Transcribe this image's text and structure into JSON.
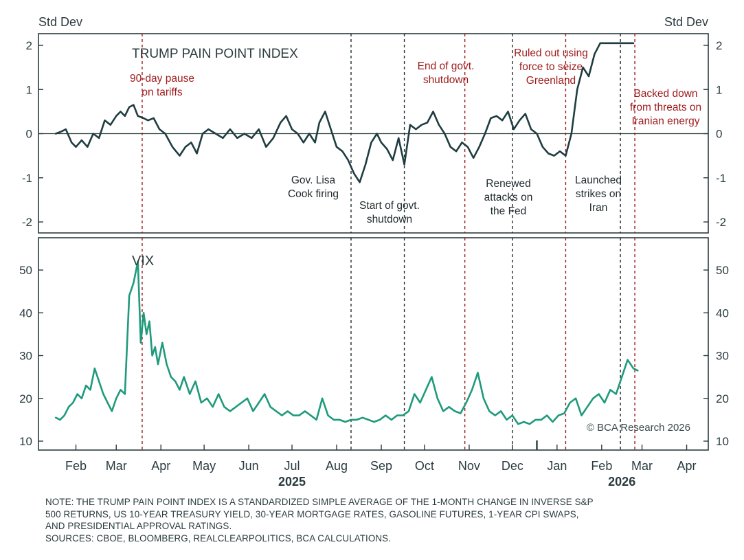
{
  "chart_data": [
    {
      "type": "line",
      "title": "TRUMP PAIN POINT INDEX",
      "y_unit_left": "Std Dev",
      "y_unit_right": "Std Dev",
      "ylim": [
        -2.4,
        2.2
      ],
      "yticks": [
        2,
        1,
        0,
        -1,
        -2
      ],
      "ytick_labels": [
        "2",
        "1",
        "0",
        "-1",
        "-2"
      ],
      "zero_line": true,
      "grid": false,
      "series": [
        {
          "color": "#1f3d40",
          "x": [
            "2025-02-01",
            "2025-02-05",
            "2025-02-08",
            "2025-02-12",
            "2025-02-15",
            "2025-02-19",
            "2025-02-23",
            "2025-02-27",
            "2025-03-03",
            "2025-03-07",
            "2025-03-11",
            "2025-03-15",
            "2025-03-18",
            "2025-03-21",
            "2025-03-24",
            "2025-03-27",
            "2025-03-30",
            "2025-04-03",
            "2025-04-06",
            "2025-04-10",
            "2025-04-14",
            "2025-04-18",
            "2025-04-23",
            "2025-04-28",
            "2025-05-02",
            "2025-05-06",
            "2025-05-10",
            "2025-05-14",
            "2025-05-18",
            "2025-05-23",
            "2025-05-28",
            "2025-06-02",
            "2025-06-07",
            "2025-06-12",
            "2025-06-17",
            "2025-06-22",
            "2025-06-27",
            "2025-07-02",
            "2025-07-07",
            "2025-07-11",
            "2025-07-15",
            "2025-07-19",
            "2025-07-23",
            "2025-07-27",
            "2025-07-31",
            "2025-08-03",
            "2025-08-07",
            "2025-08-11",
            "2025-08-15",
            "2025-08-19",
            "2025-08-23",
            "2025-08-27",
            "2025-08-31",
            "2025-09-04",
            "2025-09-08",
            "2025-09-12",
            "2025-09-15",
            "2025-09-19",
            "2025-09-23",
            "2025-09-27",
            "2025-10-01",
            "2025-10-05",
            "2025-10-09",
            "2025-10-13",
            "2025-10-17",
            "2025-10-21",
            "2025-10-25",
            "2025-10-29",
            "2025-11-02",
            "2025-11-06",
            "2025-11-10",
            "2025-11-14",
            "2025-11-18",
            "2025-11-22",
            "2025-11-26",
            "2025-11-30",
            "2025-12-04",
            "2025-12-08",
            "2025-12-12",
            "2025-12-16",
            "2025-12-20",
            "2025-12-24",
            "2025-12-28",
            "2026-01-01",
            "2026-01-05",
            "2026-01-09",
            "2026-01-13",
            "2026-01-17",
            "2026-01-21",
            "2026-01-25",
            "2026-01-29",
            "2026-02-02",
            "2026-02-06",
            "2026-02-10",
            "2026-02-14",
            "2026-02-18",
            "2026-02-22",
            "2026-02-25",
            "2026-02-28",
            "2026-03-03",
            "2026-03-06",
            "2026-03-09"
          ],
          "values": [
            0,
            0.05,
            0.1,
            -0.2,
            -0.3,
            -0.15,
            -0.3,
            0.0,
            -0.1,
            0.3,
            0.2,
            0.4,
            0.5,
            0.4,
            0.6,
            0.65,
            0.4,
            0.35,
            0.3,
            0.35,
            0.1,
            0.0,
            -0.3,
            -0.5,
            -0.3,
            -0.2,
            -0.45,
            0.0,
            0.1,
            0.0,
            -0.1,
            0.1,
            -0.1,
            0.0,
            -0.1,
            0.1,
            -0.3,
            -0.1,
            0.25,
            0.4,
            0.1,
            0.0,
            -0.2,
            0.0,
            -0.2,
            0.25,
            0.5,
            0.1,
            -0.3,
            -0.4,
            -0.6,
            -0.9,
            -1.1,
            -0.7,
            -0.2,
            0.0,
            -0.2,
            -0.35,
            -0.6,
            -0.1,
            -0.7,
            0.2,
            0.1,
            0.2,
            0.25,
            0.5,
            0.2,
            0.0,
            -0.3,
            -0.4,
            -0.2,
            -0.3,
            -0.55,
            -0.3,
            0.0,
            0.35,
            0.4,
            0.3,
            0.5,
            0.1,
            0.3,
            0.45,
            0.1,
            0.0,
            -0.3,
            -0.45,
            -0.5,
            -0.4,
            -0.5,
            0.0,
            1.0,
            1.5,
            1.3,
            1.8,
            2.05,
            2.05,
            2.05,
            2.05,
            2.05,
            2.05,
            2.05,
            2.05
          ]
        }
      ],
      "annotations": [
        {
          "text": [
            "90-day pause",
            "on tariffs"
          ],
          "date": "2025-04-02",
          "color": "#9e1b1b",
          "placement": "top"
        },
        {
          "text": [
            "Gov. Lisa",
            "Cook firing"
          ],
          "date": "2025-08-25",
          "color": "#1f2a2c",
          "placement": "bottom"
        },
        {
          "text": [
            "Start of govt.",
            "shutdown"
          ],
          "date": "2025-10-01",
          "color": "#1f2a2c",
          "placement": "bottom"
        },
        {
          "text": [
            "End of govt.",
            "shutdown"
          ],
          "date": "2025-11-12",
          "color": "#9e1b1b",
          "placement": "top"
        },
        {
          "text": [
            "Renewed",
            "attacks on",
            "the Fed"
          ],
          "date": "2025-12-15",
          "color": "#1f2a2c",
          "placement": "bottom"
        },
        {
          "text": [
            "Ruled out using",
            "force to seize",
            "Greenland"
          ],
          "date": "2026-01-21",
          "color": "#9e1b1b",
          "placement": "top"
        },
        {
          "text": [
            "Launched",
            "strikes on",
            "Iran"
          ],
          "date": "2026-02-28",
          "color": "#1f2a2c",
          "placement": "bottom"
        },
        {
          "text": [
            "Backed down",
            "from threats on",
            "Iranian energy"
          ],
          "date": "2026-03-10",
          "color": "#9e1b1b",
          "placement": "top"
        }
      ]
    },
    {
      "type": "line",
      "title": "VIX",
      "ylim": [
        8,
        57
      ],
      "yticks": [
        50,
        40,
        30,
        20,
        10
      ],
      "ytick_labels": [
        "50",
        "40",
        "30",
        "20",
        "10"
      ],
      "grid": false,
      "watermark": "© BCA Research 2026",
      "series": [
        {
          "color": "#1f9a7c",
          "x": [
            "2025-02-01",
            "2025-02-04",
            "2025-02-07",
            "2025-02-10",
            "2025-02-13",
            "2025-02-16",
            "2025-02-19",
            "2025-02-22",
            "2025-02-25",
            "2025-02-28",
            "2025-03-03",
            "2025-03-06",
            "2025-03-09",
            "2025-03-12",
            "2025-03-15",
            "2025-03-18",
            "2025-03-21",
            "2025-03-24",
            "2025-03-27",
            "2025-03-30",
            "2025-04-01",
            "2025-04-03",
            "2025-04-05",
            "2025-04-07",
            "2025-04-09",
            "2025-04-11",
            "2025-04-13",
            "2025-04-16",
            "2025-04-19",
            "2025-04-22",
            "2025-04-25",
            "2025-04-28",
            "2025-05-01",
            "2025-05-05",
            "2025-05-09",
            "2025-05-13",
            "2025-05-17",
            "2025-05-21",
            "2025-05-25",
            "2025-05-29",
            "2025-06-02",
            "2025-06-06",
            "2025-06-10",
            "2025-06-14",
            "2025-06-18",
            "2025-06-22",
            "2025-06-26",
            "2025-06-30",
            "2025-07-04",
            "2025-07-08",
            "2025-07-12",
            "2025-07-16",
            "2025-07-20",
            "2025-07-24",
            "2025-07-28",
            "2025-08-01",
            "2025-08-05",
            "2025-08-09",
            "2025-08-13",
            "2025-08-17",
            "2025-08-21",
            "2025-08-25",
            "2025-08-29",
            "2025-09-02",
            "2025-09-06",
            "2025-09-10",
            "2025-09-14",
            "2025-09-18",
            "2025-09-22",
            "2025-09-26",
            "2025-09-30",
            "2025-10-04",
            "2025-10-08",
            "2025-10-12",
            "2025-10-16",
            "2025-10-20",
            "2025-10-24",
            "2025-10-28",
            "2025-11-01",
            "2025-11-05",
            "2025-11-09",
            "2025-11-13",
            "2025-11-17",
            "2025-11-21",
            "2025-11-25",
            "2025-11-29",
            "2025-12-03",
            "2025-12-07",
            "2025-12-11",
            "2025-12-15",
            "2025-12-19",
            "2025-12-23",
            "2025-12-27",
            "2025-12-31",
            "2026-01-04",
            "2026-01-08",
            "2026-01-12",
            "2026-01-16",
            "2026-01-20",
            "2026-01-24",
            "2026-01-28",
            "2026-02-01",
            "2026-02-05",
            "2026-02-09",
            "2026-02-13",
            "2026-02-17",
            "2026-02-21",
            "2026-02-25",
            "2026-03-01",
            "2026-03-05",
            "2026-03-09",
            "2026-03-12"
          ],
          "values": [
            15.5,
            15,
            16,
            18,
            19,
            21,
            20,
            23,
            22,
            27,
            24,
            21,
            19,
            17,
            20,
            22,
            21,
            44,
            47,
            52,
            33,
            40,
            35,
            38,
            30,
            32,
            28,
            33,
            28,
            25,
            24,
            22,
            25,
            21,
            24,
            19,
            20,
            18,
            21,
            18,
            17,
            18,
            19,
            20,
            17,
            19,
            21,
            18,
            17,
            16,
            17,
            16,
            16,
            17,
            16,
            15,
            20,
            16,
            15,
            15,
            14.5,
            15,
            15,
            15.5,
            15,
            14.5,
            15,
            16,
            15,
            16,
            16,
            17,
            21,
            19,
            22,
            25,
            20,
            17,
            18,
            17,
            16.5,
            19,
            22,
            26,
            20,
            17,
            16,
            17,
            15,
            16,
            14,
            14.5,
            14,
            15,
            15,
            16,
            14.5,
            16,
            16.5,
            19,
            20,
            16,
            18,
            20,
            21,
            19,
            22,
            21,
            25,
            29,
            27,
            26.5
          ]
        }
      ],
      "annotations": []
    }
  ],
  "x_axis": {
    "month_labels": [
      "Feb",
      "Mar",
      "Apr",
      "May",
      "Jun",
      "Jul",
      "Aug",
      "Sep",
      "Oct",
      "Nov",
      "Dec",
      "Jan",
      "Feb",
      "Mar",
      "Apr"
    ],
    "month_dates": [
      "2025-02-15",
      "2025-03-15",
      "2025-04-15",
      "2025-05-15",
      "2025-06-15",
      "2025-07-15",
      "2025-08-15",
      "2025-09-15",
      "2025-10-15",
      "2025-11-15",
      "2025-12-15",
      "2026-01-15",
      "2026-02-15",
      "2026-03-15",
      "2026-04-15"
    ],
    "year_labels": [
      "2025",
      "2026"
    ],
    "year_dates": [
      "2025-07-15",
      "2026-03-01"
    ],
    "range": [
      "2025-01-20",
      "2026-04-30"
    ]
  },
  "event_lines": [
    {
      "date": "2025-04-02",
      "color": "#9e1b1b"
    },
    {
      "date": "2025-08-25",
      "color": "#1f2a2c"
    },
    {
      "date": "2025-10-01",
      "color": "#1f2a2c"
    },
    {
      "date": "2025-11-12",
      "color": "#9e1b1b"
    },
    {
      "date": "2025-12-15",
      "color": "#1f2a2c"
    },
    {
      "date": "2026-01-21",
      "color": "#9e1b1b"
    },
    {
      "date": "2026-02-28",
      "color": "#1f2a2c"
    },
    {
      "date": "2026-03-10",
      "color": "#9e1b1b"
    }
  ],
  "note": {
    "lines": [
      "NOTE: THE TRUMP PAIN POINT INDEX IS A STANDARDIZED SIMPLE AVERAGE OF THE 1-MONTH CHANGE IN INVERSE S&P",
      "500 RETURNS, US 10-YEAR TREASURY YIELD, 30-YEAR MORTGAGE RATES, GASOLINE FUTURES, 1-YEAR CPI SWAPS,",
      "AND PRESIDENTIAL APPROVAL RATINGS.",
      "SOURCES: CBOE, BLOOMBERG, REALCLEARPOLITICS, BCA CALCULATIONS."
    ]
  },
  "colors": {
    "frame": "#2a3b3e",
    "axis_text": "#2a3b3e",
    "event_red": "#9e1b1b",
    "event_dark": "#1f2a2c"
  }
}
